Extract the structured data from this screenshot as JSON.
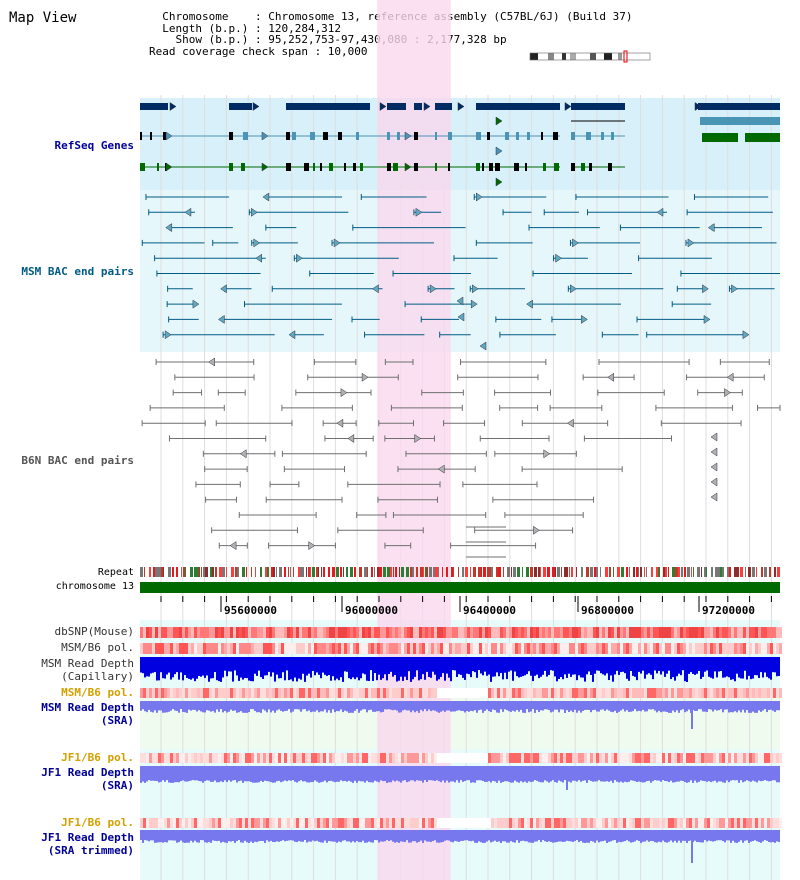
{
  "title": "Map View",
  "info": {
    "line1": "  Chromosome    : Chromosome 13, reference assembly (C57BL/6J) (Build 37)",
    "line2": "  Length (b.p.) : 120,284,312",
    "line3": "    Show (b.p.) : 95,252,753-97,430,080 : 2,177,328 bp",
    "line4": "Read coverage check span : 10,000"
  },
  "colors": {
    "gene_navy": "#002c63",
    "gene_teal": "#4a94b6",
    "gene_green": "#006a00",
    "msm_pairs": "#005b83",
    "b6n_pairs": "#6f6f6f",
    "highlight": "#f9d8ee",
    "read_depth": "#0000e0",
    "sra_depth": "#7777ee",
    "label_navy": "#000099",
    "label_orange": "#d4a000"
  },
  "labels": {
    "refseq": "RefSeq Genes",
    "msm_bac": "MSM BAC end pairs",
    "b6n_bac": "B6N BAC end pairs",
    "repeat": "Repeat",
    "chromosome": "chromosome 13",
    "dbsnp": "dbSNP(Mouse)",
    "msm_b6_pol": "MSM/B6 pol.",
    "msm_depth_1": "MSM Read Depth",
    "msm_depth_2": "(Capillary)",
    "msm_b6_pol_2": "MSM/B6 pol.",
    "msm_sra_1": "MSM Read Depth",
    "msm_sra_2": "(SRA)",
    "jf1_pol_1": "JF1/B6 pol.",
    "jf1_sra_1": "JF1 Read Depth",
    "jf1_sra_2": "(SRA)",
    "jf1_pol_2": "JF1/B6 pol.",
    "jf1_trim_1": "JF1 Read Depth",
    "jf1_trim_2": "(SRA trimmed)"
  },
  "axis": {
    "start_bp": 95252753,
    "end_bp": 97430080,
    "ticks": [
      "95600000",
      "96000000",
      "96400000",
      "96800000",
      "97200000"
    ],
    "highlight_bp": [
      96060000,
      96310000
    ]
  }
}
